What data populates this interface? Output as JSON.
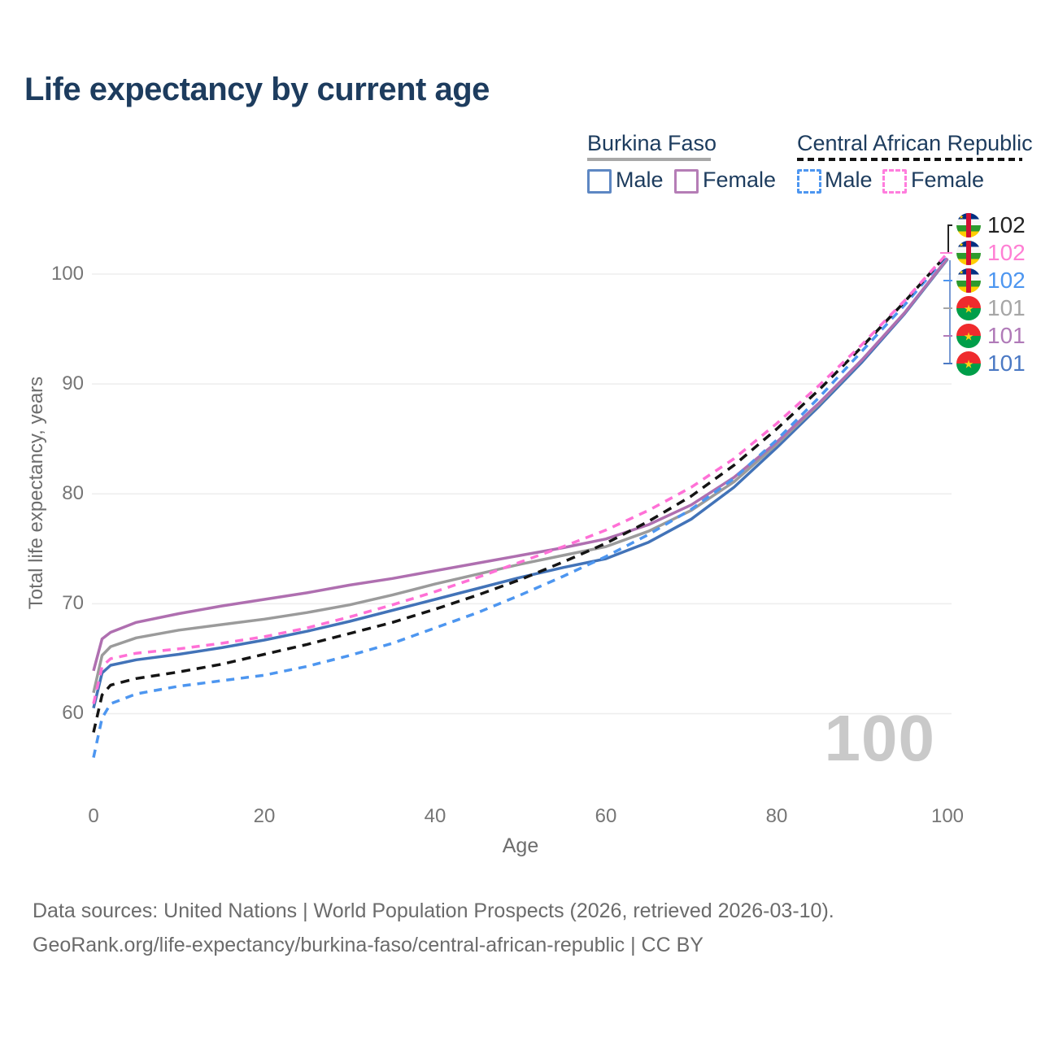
{
  "title": "Life expectancy by current age",
  "legend": {
    "groups": [
      {
        "country": "Burkina Faso",
        "line_style": "solid gray",
        "items": [
          {
            "label": "Male",
            "swatch_color": "#5d87c3",
            "swatch_style": "solid"
          },
          {
            "label": "Female",
            "swatch_color": "#b57db6",
            "swatch_style": "solid"
          }
        ]
      },
      {
        "country": "Central African Republic",
        "line_style": "dashed black",
        "items": [
          {
            "label": "Male",
            "swatch_color": "#4d96f0",
            "swatch_style": "dashed"
          },
          {
            "label": "Female",
            "swatch_color": "#ff7ddd",
            "swatch_style": "dashed"
          }
        ]
      }
    ]
  },
  "axes": {
    "y": {
      "title": "Total life expectancy, years",
      "ticks": [
        "100",
        "90",
        "80",
        "70",
        "60"
      ]
    },
    "x": {
      "title": "Age",
      "ticks": [
        "0",
        "20",
        "40",
        "60",
        "80",
        "100"
      ]
    }
  },
  "right_labels": [
    {
      "value": "102",
      "color": "#222222",
      "flag": "car",
      "series": "Central African Republic Total"
    },
    {
      "value": "102",
      "color": "#ff7fd4",
      "flag": "car",
      "series": "Central African Republic Female"
    },
    {
      "value": "102",
      "color": "#4d96f0",
      "flag": "car",
      "series": "Central African Republic Male"
    },
    {
      "value": "101",
      "color": "#a6a6a6",
      "flag": "bf",
      "series": "Burkina Faso Total"
    },
    {
      "value": "101",
      "color": "#b07ab8",
      "flag": "bf",
      "series": "Burkina Faso Female"
    },
    {
      "value": "101",
      "color": "#4b79c4",
      "flag": "bf",
      "series": "Burkina Faso Male"
    }
  ],
  "watermark": "100",
  "footer": {
    "line1": "Data sources: United Nations | World Population Prospects (2026, retrieved 2026-03-10).",
    "line2": "GeoRank.org/life-expectancy/burkina-faso/central-african-republic | CC BY"
  },
  "flag_colors": {
    "car": {
      "blue": "#003082",
      "white": "#f7f7f7",
      "green": "#2d9a2d",
      "yellow": "#ffce00",
      "red": "#d21034"
    },
    "bf": {
      "red": "#ef2b2d",
      "green": "#009e49",
      "star": "#fcd116"
    }
  },
  "chart_data": {
    "type": "line",
    "title": "Life expectancy by current age",
    "xlabel": "Age",
    "ylabel": "Total life expectancy, years",
    "xlim": [
      0,
      100
    ],
    "ylim": [
      55,
      103
    ],
    "x_ticks": [
      0,
      20,
      40,
      60,
      80,
      100
    ],
    "y_ticks": [
      60,
      70,
      80,
      90,
      100
    ],
    "grid": "horizontal-only",
    "legend_position": "top-right",
    "x": [
      0,
      1,
      2,
      5,
      10,
      15,
      20,
      25,
      30,
      35,
      40,
      45,
      50,
      55,
      60,
      65,
      70,
      75,
      80,
      85,
      90,
      95,
      100
    ],
    "series": [
      {
        "name": "Burkina Faso Male",
        "country": "Burkina Faso",
        "sex": "male",
        "style": "solid",
        "color": "#4273b8",
        "width": 3.5,
        "dash": "",
        "values": [
          60.5,
          63.7,
          64.4,
          64.9,
          65.4,
          66.0,
          66.7,
          67.5,
          68.4,
          69.4,
          70.4,
          71.4,
          72.4,
          73.3,
          74.1,
          75.6,
          77.7,
          80.6,
          84.2,
          88.0,
          92.0,
          96.4,
          101.35
        ],
        "end_label": "101"
      },
      {
        "name": "Burkina Faso Total",
        "country": "Burkina Faso",
        "sex": "both",
        "style": "solid",
        "color": "#9b9b9b",
        "width": 3.5,
        "dash": "",
        "values": [
          61.9,
          65.3,
          66.1,
          66.9,
          67.6,
          68.1,
          68.6,
          69.2,
          69.9,
          70.8,
          71.8,
          72.7,
          73.6,
          74.4,
          75.2,
          76.6,
          78.5,
          81.1,
          84.5,
          88.2,
          92.2,
          96.5,
          101.4
        ],
        "end_label": "101"
      },
      {
        "name": "Burkina Faso Female",
        "country": "Burkina Faso",
        "sex": "female",
        "style": "solid",
        "color": "#af6fb0",
        "width": 3.5,
        "dash": "",
        "values": [
          63.9,
          66.8,
          67.4,
          68.3,
          69.1,
          69.8,
          70.4,
          71.0,
          71.7,
          72.3,
          73.0,
          73.7,
          74.4,
          75.1,
          75.9,
          77.2,
          79.0,
          81.5,
          84.7,
          88.3,
          92.2,
          96.5,
          101.45
        ],
        "end_label": "101"
      },
      {
        "name": "Central African Republic Male",
        "country": "Central African Republic",
        "sex": "male",
        "style": "dashed",
        "color": "#4d96f0",
        "width": 3.5,
        "dash": "10 8",
        "values": [
          56.0,
          59.6,
          60.9,
          61.8,
          62.5,
          63.0,
          63.5,
          64.3,
          65.3,
          66.4,
          67.8,
          69.2,
          70.8,
          72.5,
          74.3,
          76.3,
          78.6,
          81.4,
          84.9,
          88.8,
          93.0,
          97.2,
          101.75
        ],
        "end_label": "102"
      },
      {
        "name": "Central African Republic Total",
        "country": "Central African Republic",
        "sex": "both",
        "style": "dashed",
        "color": "#141414",
        "width": 3.5,
        "dash": "11 8",
        "values": [
          58.3,
          61.7,
          62.6,
          63.2,
          63.8,
          64.5,
          65.4,
          66.3,
          67.3,
          68.3,
          69.5,
          70.8,
          72.2,
          73.8,
          75.5,
          77.5,
          79.8,
          82.6,
          85.9,
          89.5,
          93.4,
          97.5,
          101.85
        ],
        "end_label": "102"
      },
      {
        "name": "Central African Republic Female",
        "country": "Central African Republic",
        "sex": "female",
        "style": "dashed",
        "color": "#ff70d6",
        "width": 3.5,
        "dash": "10 8",
        "values": [
          60.9,
          64.3,
          65.0,
          65.5,
          65.9,
          66.4,
          67.0,
          67.8,
          68.8,
          69.9,
          71.1,
          72.4,
          73.8,
          75.2,
          76.7,
          78.5,
          80.6,
          83.2,
          86.4,
          89.9,
          93.6,
          97.6,
          101.9
        ],
        "end_label": "102"
      }
    ]
  }
}
